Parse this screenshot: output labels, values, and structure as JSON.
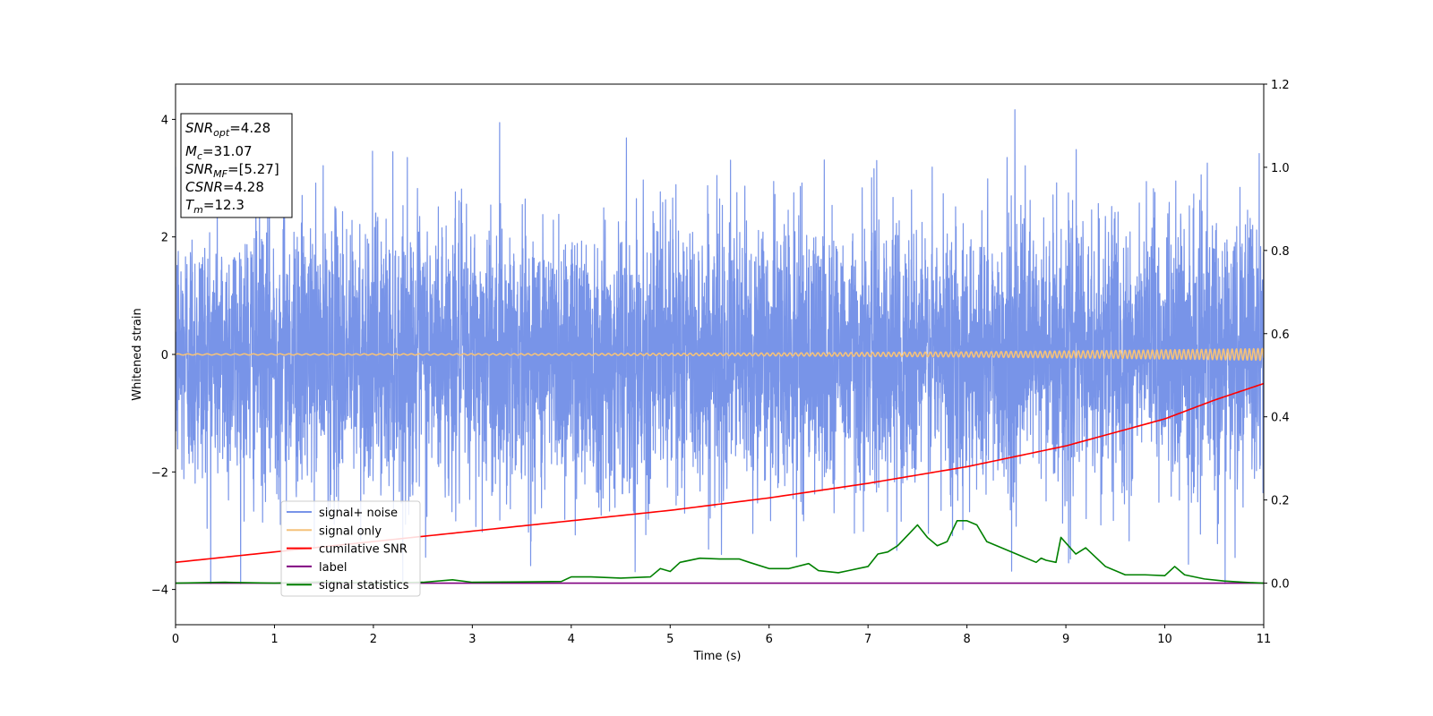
{
  "chart_data": {
    "type": "line",
    "xlabel": "Time (s)",
    "ylabel": "Whitened strain",
    "xlim": [
      0,
      11
    ],
    "ylim_left": [
      -4.6,
      4.6
    ],
    "ylim_right": [
      -0.1,
      1.2
    ],
    "x_ticks": [
      0,
      1,
      2,
      3,
      4,
      5,
      6,
      7,
      8,
      9,
      10,
      11
    ],
    "y_ticks_left": [
      -4,
      -2,
      0,
      2,
      4
    ],
    "y_ticks_right": [
      0.0,
      0.2,
      0.4,
      0.6,
      0.8,
      1.0,
      1.2
    ],
    "legend_position": "lower-left",
    "annotation": {
      "lines": [
        {
          "base": "SNR",
          "sub": "opt",
          "value": "=4.28"
        },
        {
          "base": "M",
          "sub": "c",
          "value": "=31.07"
        },
        {
          "base": "SNR",
          "sub": "MF",
          "value": "=[5.27]"
        },
        {
          "base": "CSNR",
          "sub": "",
          "value": "=4.28"
        },
        {
          "base": "T",
          "sub": "m",
          "value": "=12.3"
        }
      ]
    },
    "series": [
      {
        "name": "signal+ noise",
        "axis": "left",
        "color": "#7894e8",
        "kind": "noise",
        "std": 1.0,
        "peak_range": [
          -3.9,
          4.2
        ]
      },
      {
        "name": "signal only",
        "axis": "left",
        "color": "#f5c27a",
        "kind": "chirp",
        "amplitude_start": 0.01,
        "amplitude_end": 0.1
      },
      {
        "name": "cumilative SNR",
        "axis": "right",
        "color": "#ff0000",
        "x": [
          0,
          1,
          2,
          3,
          4,
          5,
          6,
          7,
          8,
          9,
          10,
          10.5,
          11
        ],
        "y": [
          0.05,
          0.075,
          0.1,
          0.125,
          0.15,
          0.175,
          0.205,
          0.24,
          0.28,
          0.33,
          0.395,
          0.44,
          0.48
        ]
      },
      {
        "name": "label",
        "axis": "right",
        "color": "#800080",
        "x": [
          0,
          11
        ],
        "y": [
          0.0,
          0.0
        ]
      },
      {
        "name": "signal statistics",
        "axis": "right",
        "color": "#008000",
        "x": [
          0,
          0.5,
          1,
          1.5,
          2,
          2.5,
          2.8,
          3,
          3.5,
          3.9,
          4,
          4.2,
          4.5,
          4.8,
          4.9,
          5,
          5.1,
          5.3,
          5.5,
          5.7,
          5.8,
          6,
          6.2,
          6.4,
          6.5,
          6.7,
          6.8,
          7,
          7.1,
          7.2,
          7.3,
          7.5,
          7.6,
          7.7,
          7.8,
          7.9,
          8,
          8.1,
          8.2,
          8.3,
          8.5,
          8.7,
          8.75,
          8.8,
          8.9,
          8.95,
          9.1,
          9.2,
          9.4,
          9.6,
          9.8,
          10,
          10.1,
          10.2,
          10.4,
          10.6,
          10.8,
          11
        ],
        "y": [
          0.0,
          0.002,
          0.0,
          0.003,
          0.0,
          0.002,
          0.008,
          0.002,
          0.003,
          0.004,
          0.015,
          0.015,
          0.012,
          0.015,
          0.035,
          0.028,
          0.05,
          0.06,
          0.058,
          0.058,
          0.05,
          0.035,
          0.035,
          0.047,
          0.03,
          0.025,
          0.03,
          0.04,
          0.07,
          0.075,
          0.09,
          0.14,
          0.11,
          0.09,
          0.1,
          0.15,
          0.15,
          0.14,
          0.1,
          0.09,
          0.07,
          0.05,
          0.06,
          0.055,
          0.05,
          0.11,
          0.07,
          0.085,
          0.04,
          0.02,
          0.02,
          0.018,
          0.04,
          0.02,
          0.01,
          0.005,
          0.002,
          0.0
        ]
      }
    ]
  }
}
